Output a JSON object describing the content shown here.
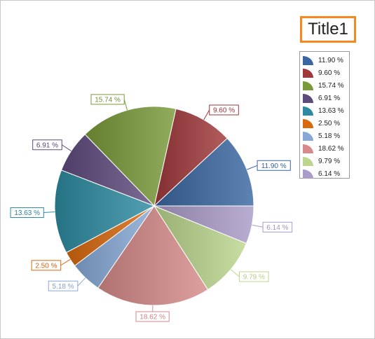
{
  "chart_data": {
    "type": "pie",
    "title": "Title1",
    "legend": "top-right",
    "slices": [
      {
        "value": 11.9,
        "label": "11.90 %",
        "color": "#3b67a1"
      },
      {
        "value": 9.6,
        "label": "9.60 %",
        "color": "#a0383a"
      },
      {
        "value": 15.74,
        "label": "15.74 %",
        "color": "#7a9a3a"
      },
      {
        "value": 6.91,
        "label": "6.91 %",
        "color": "#5f4a7d"
      },
      {
        "value": 13.63,
        "label": "13.63 %",
        "color": "#2c8ba0"
      },
      {
        "value": 2.5,
        "label": "2.50 %",
        "color": "#d9690f"
      },
      {
        "value": 5.18,
        "label": "5.18 %",
        "color": "#86a8d6"
      },
      {
        "value": 18.62,
        "label": "18.62 %",
        "color": "#d78a8a"
      },
      {
        "value": 9.79,
        "label": "9.79 %",
        "color": "#bcd68e"
      },
      {
        "value": 6.14,
        "label": "6.14 %",
        "color": "#ab9bc8"
      }
    ]
  }
}
